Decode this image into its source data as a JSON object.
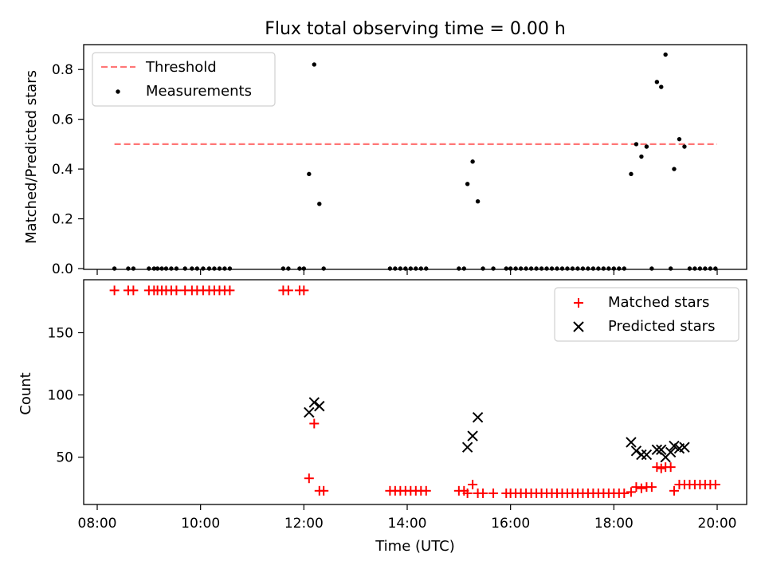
{
  "chart_data": [
    {
      "type": "scatter",
      "title": "Flux total observing time = 0.00 h",
      "xlabel": "",
      "ylabel": "Matched/Predicted stars",
      "ylim": [
        0,
        0.9
      ],
      "yticks": [
        "0.0",
        "0.2",
        "0.4",
        "0.6",
        "0.8"
      ],
      "legend_position": "top-left",
      "threshold": {
        "name": "Threshold",
        "value": 0.5,
        "x_start": "08:20",
        "x_end": "20:00",
        "color": "#ff7777"
      },
      "series": [
        {
          "name": "Measurements",
          "color": "#000000",
          "x": [
            "08:20",
            "08:36",
            "08:42",
            "09:00",
            "09:06",
            "09:10",
            "09:15",
            "09:20",
            "09:26",
            "09:32",
            "09:42",
            "09:50",
            "09:56",
            "10:03",
            "10:10",
            "10:16",
            "10:22",
            "10:28",
            "10:34",
            "11:36",
            "11:42",
            "11:55",
            "12:00",
            "12:06",
            "12:12",
            "12:18",
            "12:23",
            "13:40",
            "13:46",
            "13:52",
            "13:58",
            "14:04",
            "14:10",
            "14:16",
            "14:22",
            "15:00",
            "15:06",
            "15:10",
            "15:16",
            "15:22",
            "15:28",
            "15:40",
            "15:55",
            "16:00",
            "16:06",
            "16:12",
            "16:18",
            "16:24",
            "16:30",
            "16:36",
            "16:42",
            "16:48",
            "16:54",
            "17:00",
            "17:06",
            "17:12",
            "17:18",
            "17:24",
            "17:30",
            "17:36",
            "17:42",
            "17:48",
            "17:54",
            "18:00",
            "18:06",
            "18:12",
            "18:20",
            "18:26",
            "18:32",
            "18:38",
            "18:44",
            "18:50",
            "18:55",
            "19:00",
            "19:06",
            "19:10",
            "19:16",
            "19:22",
            "19:28",
            "19:34",
            "19:40",
            "19:46",
            "19:52",
            "19:58"
          ],
          "y": [
            0,
            0,
            0,
            0,
            0,
            0,
            0,
            0,
            0,
            0,
            0,
            0,
            0,
            0,
            0,
            0,
            0,
            0,
            0,
            0,
            0,
            0,
            0,
            0.38,
            0.82,
            0.26,
            0,
            0,
            0,
            0,
            0,
            0,
            0,
            0,
            0,
            0,
            0,
            0.34,
            0.43,
            0.27,
            0,
            0,
            0,
            0,
            0,
            0,
            0,
            0,
            0,
            0,
            0,
            0,
            0,
            0,
            0,
            0,
            0,
            0,
            0,
            0,
            0,
            0,
            0,
            0,
            0,
            0,
            0.38,
            0.5,
            0.45,
            0.49,
            0,
            0.75,
            0.73,
            0.86,
            0,
            0.4,
            0.52,
            0.49,
            0,
            0,
            0,
            0,
            0,
            0
          ]
        }
      ]
    },
    {
      "type": "scatter",
      "title": "",
      "xlabel": "Time (UTC)",
      "ylabel": "Count",
      "ylim": [
        12,
        190
      ],
      "yticks": [
        "50",
        "100",
        "150"
      ],
      "xticks": [
        "08:00",
        "10:00",
        "12:00",
        "14:00",
        "16:00",
        "18:00",
        "20:00"
      ],
      "legend_position": "top-right",
      "series": [
        {
          "name": "Matched stars",
          "marker": "plus",
          "color": "#ff0000",
          "x": [
            "08:20",
            "08:36",
            "08:42",
            "09:00",
            "09:06",
            "09:10",
            "09:15",
            "09:20",
            "09:26",
            "09:32",
            "09:42",
            "09:50",
            "09:56",
            "10:03",
            "10:10",
            "10:16",
            "10:22",
            "10:28",
            "10:34",
            "11:36",
            "11:42",
            "11:55",
            "12:00",
            "12:06",
            "12:12",
            "12:18",
            "12:23",
            "13:40",
            "13:46",
            "13:52",
            "13:58",
            "14:04",
            "14:10",
            "14:16",
            "14:22",
            "15:00",
            "15:06",
            "15:10",
            "15:16",
            "15:22",
            "15:28",
            "15:40",
            "15:55",
            "16:00",
            "16:06",
            "16:12",
            "16:18",
            "16:24",
            "16:30",
            "16:36",
            "16:42",
            "16:48",
            "16:54",
            "17:00",
            "17:06",
            "17:12",
            "17:18",
            "17:24",
            "17:30",
            "17:36",
            "17:42",
            "17:48",
            "17:54",
            "18:00",
            "18:06",
            "18:12",
            "18:20",
            "18:26",
            "18:32",
            "18:38",
            "18:44",
            "18:50",
            "18:55",
            "19:00",
            "19:06",
            "19:10",
            "19:16",
            "19:22",
            "19:28",
            "19:34",
            "19:40",
            "19:46",
            "19:52",
            "19:58"
          ],
          "y": [
            184,
            184,
            184,
            184,
            184,
            184,
            184,
            184,
            184,
            184,
            184,
            184,
            184,
            184,
            184,
            184,
            184,
            184,
            184,
            184,
            184,
            184,
            184,
            33,
            77,
            23,
            23,
            23,
            23,
            23,
            23,
            23,
            23,
            23,
            23,
            23,
            23,
            21,
            28,
            21,
            21,
            21,
            21,
            21,
            21,
            21,
            21,
            21,
            21,
            21,
            21,
            21,
            21,
            21,
            21,
            21,
            21,
            21,
            21,
            21,
            21,
            21,
            21,
            21,
            21,
            21,
            22,
            26,
            25,
            26,
            26,
            42,
            41,
            42,
            42,
            23,
            28,
            28,
            28,
            28,
            28,
            28,
            28,
            28
          ]
        },
        {
          "name": "Predicted stars",
          "marker": "x",
          "color": "#000000",
          "x": [
            "12:06",
            "12:12",
            "12:18",
            "15:10",
            "15:16",
            "15:22",
            "18:20",
            "18:26",
            "18:32",
            "18:38",
            "18:50",
            "18:55",
            "19:00",
            "19:06",
            "19:10",
            "19:16",
            "19:22"
          ],
          "y": [
            86,
            94,
            91,
            58,
            67,
            82,
            62,
            55,
            52,
            52,
            56,
            56,
            50,
            54,
            59,
            57,
            58
          ]
        }
      ]
    }
  ]
}
